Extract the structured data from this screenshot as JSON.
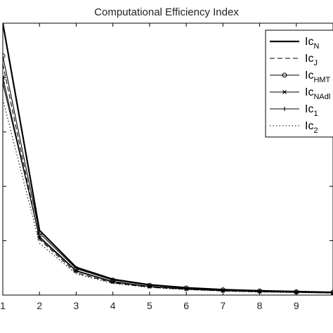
{
  "chart_data": {
    "type": "line",
    "title": "Computational Efficiency Index",
    "xlabel": "",
    "ylabel": "",
    "x": [
      1,
      2,
      3,
      4,
      5,
      6,
      7,
      8,
      9,
      10
    ],
    "x_tick_labels": [
      "1",
      "2",
      "3",
      "4",
      "5",
      "6",
      "7",
      "8",
      "9"
    ],
    "xlim": [
      1,
      10
    ],
    "ylim": [
      0,
      1
    ],
    "y_tick_values": [
      0.2,
      0.4,
      0.6,
      0.8
    ],
    "grid": false,
    "legend_placement": "top-right",
    "series": [
      {
        "name": "Ic_N",
        "main": "Ic",
        "sub": "N",
        "style": "solid",
        "width": 2.2,
        "marker": "none",
        "values": [
          1.0,
          0.238,
          0.102,
          0.058,
          0.038,
          0.027,
          0.02,
          0.016,
          0.013,
          0.01
        ]
      },
      {
        "name": "Ic_J",
        "main": "Ic",
        "sub": "J",
        "style": "dashed",
        "width": 1.1,
        "marker": "none",
        "values": [
          0.85,
          0.205,
          0.082,
          0.045,
          0.029,
          0.021,
          0.015,
          0.012,
          0.01,
          0.008
        ]
      },
      {
        "name": "Ic_HMT",
        "main": "Ic",
        "sub": "HMT",
        "style": "solid",
        "width": 1.1,
        "marker": "circle",
        "values": [
          0.88,
          0.228,
          0.097,
          0.055,
          0.036,
          0.026,
          0.019,
          0.015,
          0.012,
          0.01
        ]
      },
      {
        "name": "Ic_NAdl",
        "main": "Ic",
        "sub": "NAdl",
        "style": "solid",
        "width": 1.1,
        "marker": "x",
        "values": [
          0.8,
          0.21,
          0.088,
          0.048,
          0.031,
          0.022,
          0.016,
          0.013,
          0.01,
          0.008
        ]
      },
      {
        "name": "Ic_1",
        "main": "Ic",
        "sub": "1",
        "style": "solid",
        "width": 1.1,
        "marker": "plus",
        "values": [
          0.78,
          0.215,
          0.09,
          0.05,
          0.032,
          0.023,
          0.017,
          0.013,
          0.011,
          0.009
        ]
      },
      {
        "name": "Ic_2",
        "main": "Ic",
        "sub": "2",
        "style": "dotted",
        "width": 1.1,
        "marker": "none",
        "values": [
          0.72,
          0.19,
          0.078,
          0.043,
          0.028,
          0.02,
          0.015,
          0.011,
          0.009,
          0.007
        ]
      }
    ]
  }
}
